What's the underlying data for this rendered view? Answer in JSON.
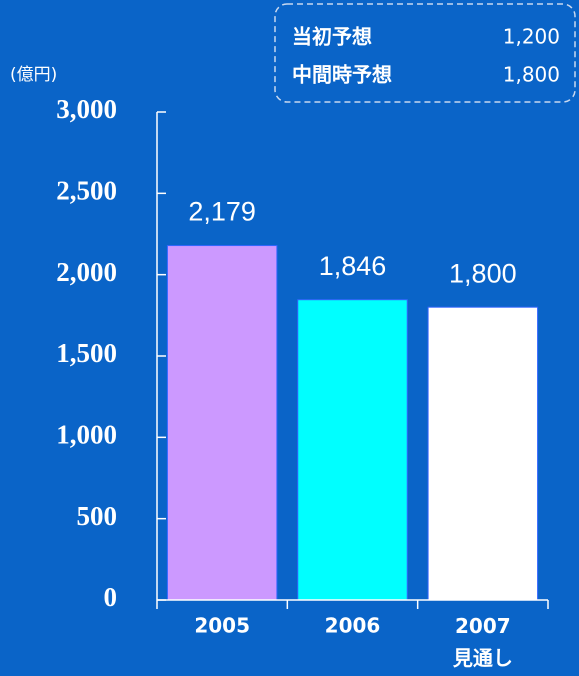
{
  "chart_data": {
    "type": "bar",
    "unit_label": "(億円)",
    "categories": [
      "2005",
      "2006",
      "2007\n見通し"
    ],
    "values": [
      2179,
      1846,
      1800
    ],
    "value_labels": [
      "2,179",
      "1,846",
      "1,800"
    ],
    "colors": [
      "#cc99ff",
      "#00ffff",
      "#ffffff"
    ],
    "ylim": [
      0,
      3000
    ],
    "yticks": [
      0,
      500,
      {
        "value": 1000,
        "label": "1,000"
      },
      {
        "value": 1500,
        "label": "1,500"
      },
      {
        "value": 2000,
        "label": "2,000"
      },
      {
        "value": 2500,
        "label": "2,500"
      },
      {
        "value": 3000,
        "label": "3,000"
      }
    ],
    "annotations": [
      {
        "label": "当初予想",
        "text": "1,200"
      },
      {
        "label": "中間時予想",
        "text": "1,800"
      }
    ]
  }
}
